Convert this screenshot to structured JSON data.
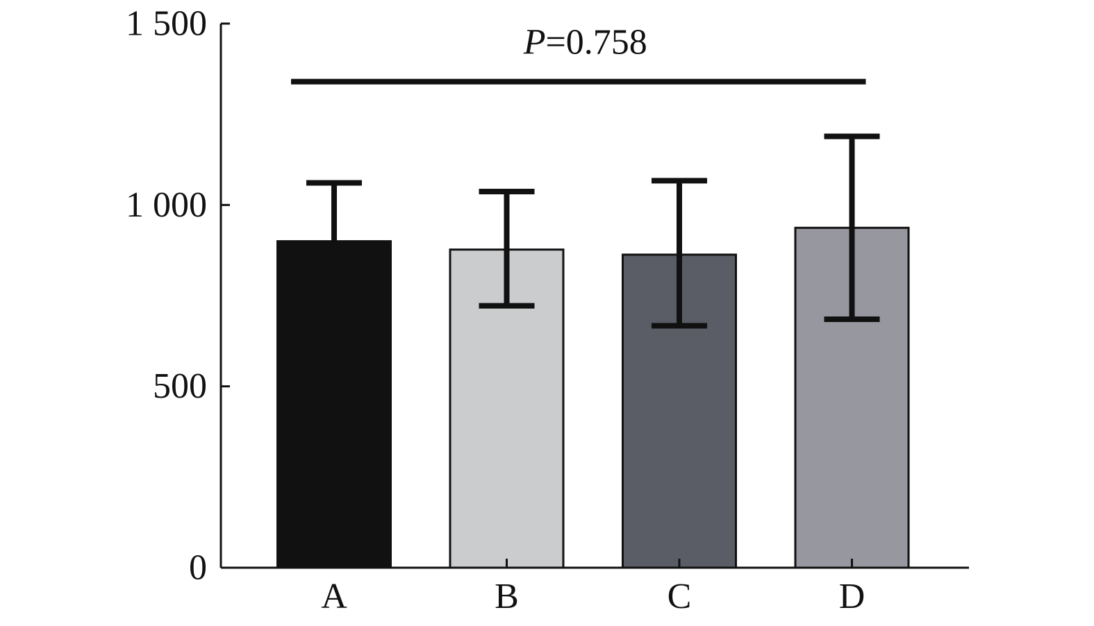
{
  "chart_data": {
    "type": "bar",
    "title": "",
    "xlabel": "",
    "ylabel": "",
    "categories": [
      "A",
      "B",
      "C",
      "D"
    ],
    "values": [
      900,
      877,
      863,
      937
    ],
    "error_high": [
      1061,
      1037,
      1067,
      1189
    ],
    "error_low": [
      900,
      722,
      667,
      685
    ],
    "bar_colors": [
      "#111111",
      "#cbcccd",
      "#5a5d66",
      "#97979f"
    ],
    "ylim": [
      0,
      1500
    ],
    "yticks": [
      0,
      500,
      1000,
      1500
    ],
    "ytick_labels": [
      "0",
      "500",
      "1 000",
      "1 500"
    ],
    "grid": false,
    "legend": "none",
    "annotation": {
      "p_symbol": "P",
      "p_text": "=0.758",
      "span_from": "A",
      "span_to": "D",
      "level": 1340
    }
  }
}
